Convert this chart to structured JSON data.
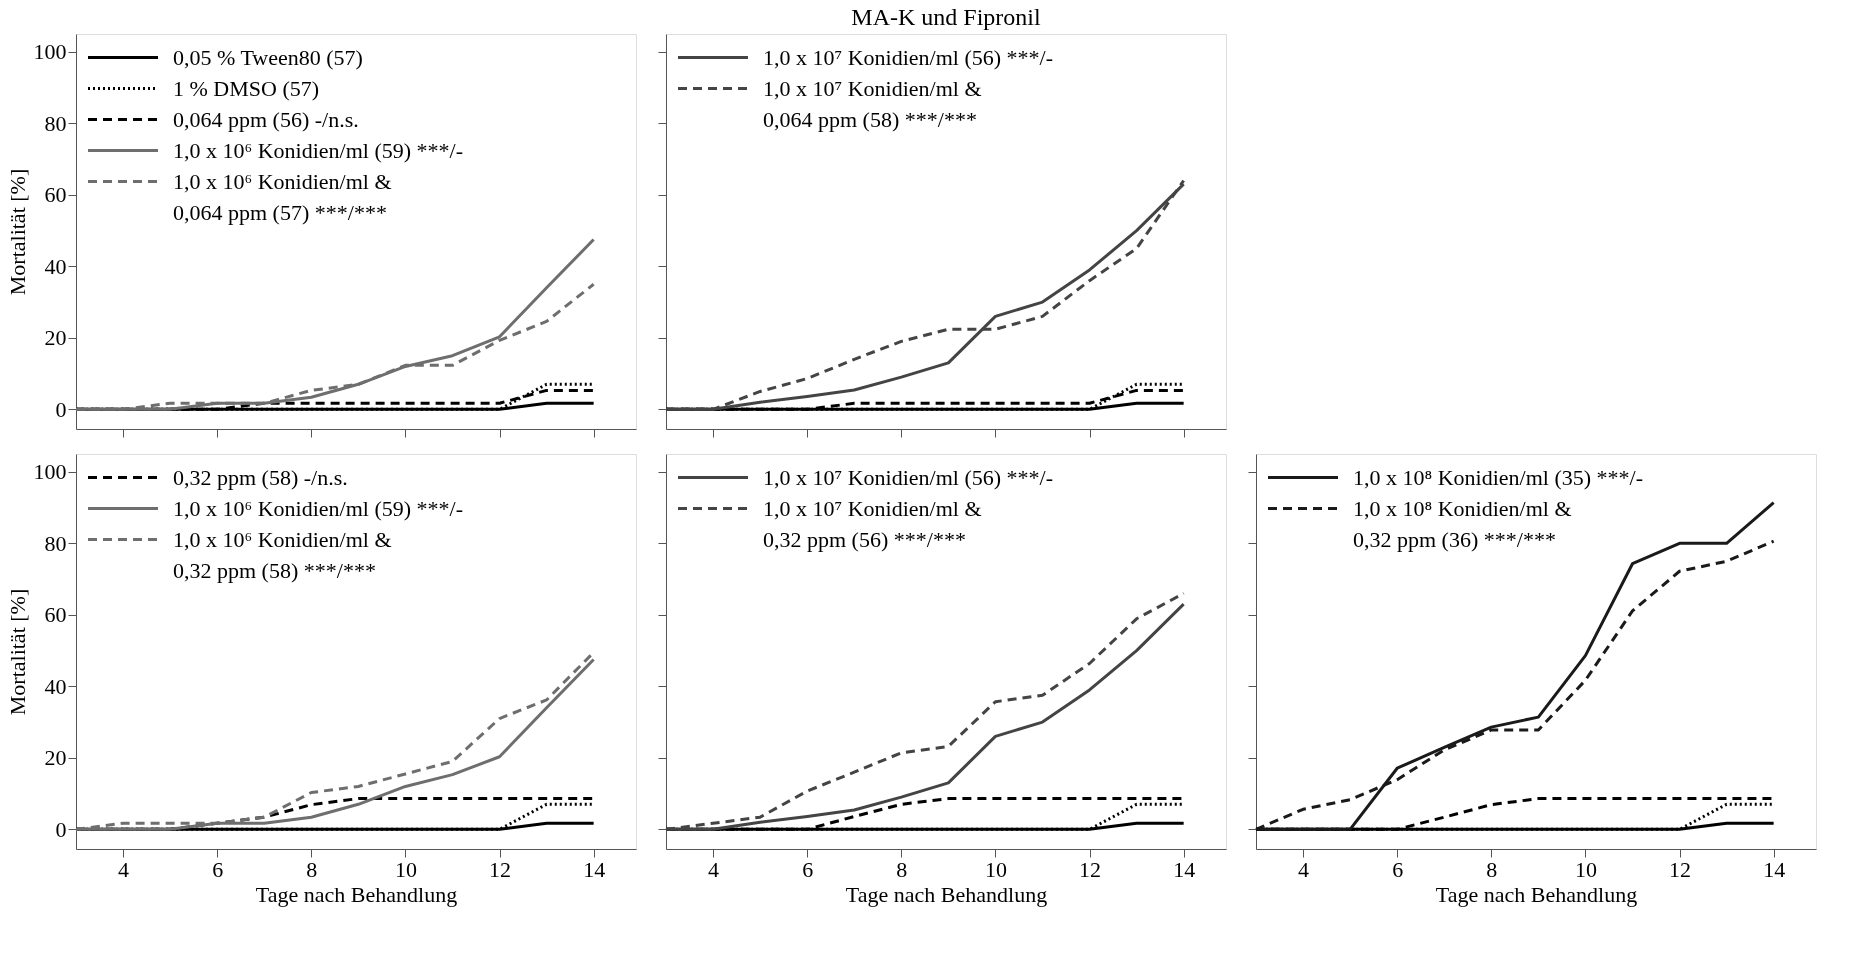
{
  "chart_data": [
    {
      "type": "line",
      "ylabel": "Mortalität [%]",
      "x": [
        3,
        4,
        5,
        6,
        7,
        8,
        9,
        10,
        11,
        12,
        13,
        14
      ],
      "xlim": [
        3,
        14.9
      ],
      "xticks": [
        4,
        6,
        8,
        10,
        12,
        14
      ],
      "ylim": [
        -5.5,
        105
      ],
      "yticks": [
        0,
        20,
        40,
        60,
        80,
        100
      ],
      "tick_labels": "y",
      "legend": "top left",
      "grid": false,
      "series": [
        {
          "name": "0,05 % Tween80 (57)",
          "color": "#000000",
          "line_style": "solid",
          "values": [
            0,
            0,
            0,
            0,
            0,
            0,
            0,
            0,
            0,
            0,
            1.7,
            1.7
          ]
        },
        {
          "name": "1 % DMSO (57)",
          "color": "#000000",
          "line_style": "dotted",
          "values": [
            0,
            0,
            0,
            0,
            0,
            0,
            0,
            0,
            0,
            0,
            7,
            7
          ]
        },
        {
          "name": "0,064 ppm (56) -/n.s.",
          "color": "#000000",
          "line_style": "dashed",
          "values": [
            0,
            0,
            0,
            0,
            1.7,
            1.7,
            1.7,
            1.7,
            1.7,
            1.7,
            5.3,
            5.3
          ]
        },
        {
          "name": "1,0 x 10⁶ Konidien/ml (59) ***/-",
          "color": "#6e6e6e",
          "line_style": "solid",
          "values": [
            0,
            0,
            0,
            1.7,
            1.7,
            3.4,
            7,
            12,
            15,
            20.3,
            34,
            47.5
          ]
        },
        {
          "name": "1,0 x 10⁶ Konidien/ml  &\n0,064 ppm (57) ***/***",
          "color": "#6e6e6e",
          "line_style": "dashed",
          "values": [
            0,
            0,
            1.7,
            1.7,
            1.7,
            5.3,
            7,
            12.3,
            12.3,
            19.3,
            24.6,
            35
          ]
        }
      ]
    },
    {
      "type": "line",
      "title": "MA-K und Fipronil",
      "x": [
        3,
        4,
        5,
        6,
        7,
        8,
        9,
        10,
        11,
        12,
        13,
        14
      ],
      "xlim": [
        3,
        14.9
      ],
      "xticks": [
        4,
        6,
        8,
        10,
        12,
        14
      ],
      "ylim": [
        -5.5,
        105
      ],
      "yticks": [
        0,
        20,
        40,
        60,
        80,
        100
      ],
      "tick_labels": false,
      "legend": "top left",
      "grid": false,
      "series": [
        {
          "color": "#000000",
          "line_style": "solid",
          "values": [
            0,
            0,
            0,
            0,
            0,
            0,
            0,
            0,
            0,
            0,
            1.7,
            1.7
          ]
        },
        {
          "color": "#000000",
          "line_style": "dotted",
          "values": [
            0,
            0,
            0,
            0,
            0,
            0,
            0,
            0,
            0,
            0,
            7,
            7
          ]
        },
        {
          "color": "#000000",
          "line_style": "dashed",
          "values": [
            0,
            0,
            0,
            0,
            1.7,
            1.7,
            1.7,
            1.7,
            1.7,
            1.7,
            5.3,
            5.3
          ]
        },
        {
          "name": "1,0 x 10⁷ Konidien/ml (56) ***/-",
          "color": "#444444",
          "line_style": "solid",
          "values": [
            0,
            0,
            2,
            3.6,
            5.4,
            9,
            13,
            26,
            30,
            39,
            50,
            63
          ]
        },
        {
          "name": "1,0 x 10⁷ Konidien/ml &\n0,064 ppm (58) ***/***",
          "color": "#444444",
          "line_style": "dashed",
          "values": [
            0,
            0,
            5,
            8.6,
            14,
            19,
            22.4,
            22.4,
            26,
            36,
            45,
            64
          ]
        }
      ]
    },
    {
      "type": "line",
      "ylabel": "Mortalität [%]",
      "xlabel": "Tage nach Behandlung",
      "x": [
        3,
        4,
        5,
        6,
        7,
        8,
        9,
        10,
        11,
        12,
        13,
        14
      ],
      "xlim": [
        3,
        14.9
      ],
      "xticks": [
        4,
        6,
        8,
        10,
        12,
        14
      ],
      "ylim": [
        -5.5,
        105
      ],
      "yticks": [
        0,
        20,
        40,
        60,
        80,
        100
      ],
      "legend": "top left",
      "grid": false,
      "series": [
        {
          "color": "#000000",
          "line_style": "solid",
          "values": [
            0,
            0,
            0,
            0,
            0,
            0,
            0,
            0,
            0,
            0,
            1.7,
            1.7
          ]
        },
        {
          "color": "#000000",
          "line_style": "dotted",
          "values": [
            0,
            0,
            0,
            0,
            0,
            0,
            0,
            0,
            0,
            0,
            7,
            7
          ]
        },
        {
          "name": "0,32 ppm (58) -/n.s.",
          "color": "#000000",
          "line_style": "dashed",
          "values": [
            0,
            0,
            0,
            1.7,
            3.4,
            6.9,
            8.6,
            8.6,
            8.6,
            8.6,
            8.6,
            8.6
          ]
        },
        {
          "name": "1,0 x 10⁶ Konidien/ml (59) ***/-",
          "color": "#6e6e6e",
          "line_style": "solid",
          "values": [
            0,
            0,
            0,
            1.7,
            1.7,
            3.4,
            7,
            12,
            15.3,
            20.3,
            34,
            47.5
          ]
        },
        {
          "name": "1,0 x 10⁶ Konidien/ml &\n0,32 ppm (58) ***/***",
          "color": "#6e6e6e",
          "line_style": "dashed",
          "values": [
            0,
            1.7,
            1.7,
            1.7,
            3.4,
            10.3,
            12,
            15.5,
            19,
            31,
            36.2,
            49.5
          ]
        }
      ]
    },
    {
      "type": "line",
      "xlabel": "Tage nach Behandlung",
      "x": [
        3,
        4,
        5,
        6,
        7,
        8,
        9,
        10,
        11,
        12,
        13,
        14
      ],
      "xlim": [
        3,
        14.9
      ],
      "xticks": [
        4,
        6,
        8,
        10,
        12,
        14
      ],
      "ylim": [
        -5.5,
        105
      ],
      "yticks": [
        0,
        20,
        40,
        60,
        80,
        100
      ],
      "tick_labels": "x",
      "legend": "top left",
      "grid": false,
      "series": [
        {
          "color": "#000000",
          "line_style": "solid",
          "values": [
            0,
            0,
            0,
            0,
            0,
            0,
            0,
            0,
            0,
            0,
            1.7,
            1.7
          ]
        },
        {
          "color": "#000000",
          "line_style": "dotted",
          "values": [
            0,
            0,
            0,
            0,
            0,
            0,
            0,
            0,
            0,
            0,
            7,
            7
          ]
        },
        {
          "color": "#000000",
          "line_style": "dashed",
          "values": [
            0,
            0,
            0,
            0,
            3.6,
            7,
            8.6,
            8.6,
            8.6,
            8.6,
            8.6,
            8.6
          ]
        },
        {
          "name": "1,0 x 10⁷ Konidien/ml (56) ***/-",
          "color": "#444444",
          "line_style": "solid",
          "values": [
            0,
            0,
            2,
            3.6,
            5.4,
            9,
            13,
            26,
            30,
            39,
            50,
            63
          ]
        },
        {
          "name": "1,0 x 10⁷ Konidien/ml &\n0,32 ppm (56) ***/***",
          "color": "#444444",
          "line_style": "dashed",
          "values": [
            0,
            1.7,
            3.4,
            10.7,
            16,
            21.4,
            23.2,
            35.7,
            37.5,
            46.4,
            58.9,
            66
          ]
        }
      ]
    },
    {
      "type": "line",
      "xlabel": "Tage nach Behandlung",
      "x": [
        3,
        4,
        5,
        6,
        7,
        8,
        9,
        10,
        11,
        12,
        13,
        14
      ],
      "xlim": [
        3,
        14.9
      ],
      "xticks": [
        4,
        6,
        8,
        10,
        12,
        14
      ],
      "ylim": [
        -5.5,
        105
      ],
      "yticks": [
        0,
        20,
        40,
        60,
        80,
        100
      ],
      "tick_labels": "x",
      "legend": "top left",
      "grid": false,
      "series": [
        {
          "color": "#000000",
          "line_style": "solid",
          "values": [
            0,
            0,
            0,
            0,
            0,
            0,
            0,
            0,
            0,
            0,
            1.7,
            1.7
          ]
        },
        {
          "color": "#000000",
          "line_style": "dotted",
          "values": [
            0,
            0,
            0,
            0,
            0,
            0,
            0,
            0,
            0,
            0,
            7,
            7
          ]
        },
        {
          "color": "#000000",
          "line_style": "dashed",
          "values": [
            0,
            0,
            0,
            0,
            3.4,
            6.9,
            8.6,
            8.6,
            8.6,
            8.6,
            8.6,
            8.6
          ]
        },
        {
          "name": "1,0 x 10⁸ Konidien/ml (35) ***/-",
          "color": "#1a1a1a",
          "line_style": "solid",
          "values": [
            0,
            0,
            0,
            17.1,
            22.9,
            28.6,
            31.4,
            48.6,
            74.3,
            80,
            80,
            91.4
          ]
        },
        {
          "name": "1,0 x 10⁸ Konidien/ml &\n0,32 ppm (36) ***/***",
          "color": "#1a1a1a",
          "line_style": "dashed",
          "values": [
            0,
            5.6,
            8.3,
            13.9,
            22.2,
            27.8,
            27.8,
            41.7,
            61.1,
            72.2,
            75,
            80.6
          ]
        }
      ]
    }
  ]
}
